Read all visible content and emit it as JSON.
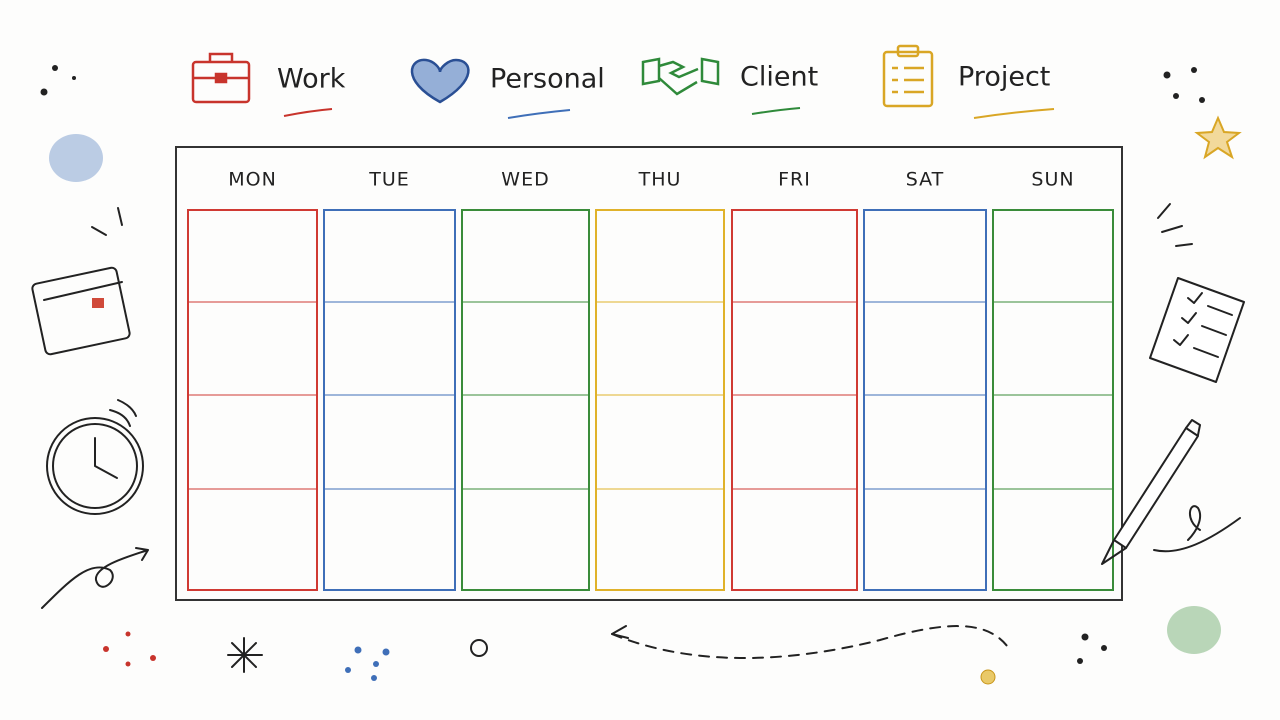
{
  "legend": [
    {
      "label": "Work"
    },
    {
      "label": "Personal"
    },
    {
      "label": "Client"
    },
    {
      "label": "Project"
    }
  ],
  "days": [
    "MON",
    "TUE",
    "WED",
    "THU",
    "FRI",
    "SAT",
    "SUN"
  ]
}
